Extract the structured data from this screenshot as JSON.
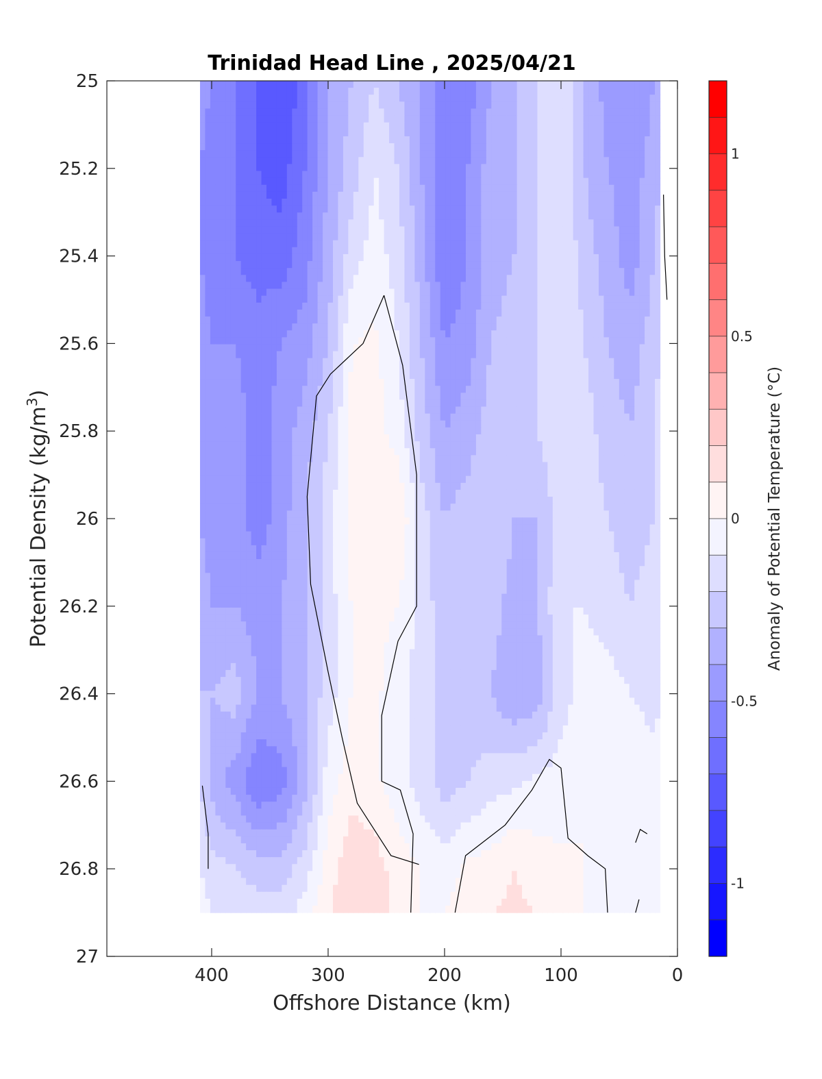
{
  "chart_data": {
    "type": "heatmap",
    "title": "Trinidad Head Line , 2025/04/21",
    "xlabel": "Offshore Distance (km)",
    "ylabel_main": "Potential Density (kg/m",
    "ylabel_sup": "3",
    "ylabel_close": ")",
    "colorbar_label": "Anomaly of Potential Temperature (°C)",
    "xlim": [
      490,
      0
    ],
    "x_reversed": true,
    "ylim": [
      25,
      27
    ],
    "y_reversed": true,
    "x_ticks": [
      {
        "value": 400,
        "label": "400"
      },
      {
        "value": 300,
        "label": "300"
      },
      {
        "value": 200,
        "label": "200"
      },
      {
        "value": 100,
        "label": "100"
      },
      {
        "value": 0,
        "label": "0"
      }
    ],
    "y_ticks": [
      {
        "value": 25,
        "label": "25"
      },
      {
        "value": 25.2,
        "label": "25.2"
      },
      {
        "value": 25.4,
        "label": "25.4"
      },
      {
        "value": 25.6,
        "label": "25.6"
      },
      {
        "value": 25.8,
        "label": "25.8"
      },
      {
        "value": 26,
        "label": "26"
      },
      {
        "value": 26.2,
        "label": "26.2"
      },
      {
        "value": 26.4,
        "label": "26.4"
      },
      {
        "value": 26.6,
        "label": "26.6"
      },
      {
        "value": 26.8,
        "label": "26.8"
      },
      {
        "value": 27,
        "label": "27"
      }
    ],
    "colorbar": {
      "clim": [
        -1.2,
        1.2
      ],
      "step": 0.1,
      "ticks": [
        {
          "value": 1,
          "label": "1"
        },
        {
          "value": 0.5,
          "label": "0.5"
        },
        {
          "value": 0,
          "label": "0"
        },
        {
          "value": -0.5,
          "label": "-0.5"
        },
        {
          "value": -1,
          "label": "-1"
        }
      ]
    },
    "data_extent": {
      "x": [
        410,
        15
      ],
      "y": [
        25,
        26.9
      ]
    },
    "grid": {
      "x": [
        410,
        400,
        380,
        360,
        340,
        320,
        300,
        280,
        260,
        240,
        220,
        200,
        180,
        160,
        140,
        120,
        100,
        80,
        60,
        40,
        20,
        15
      ],
      "y": [
        25.0,
        25.2,
        25.4,
        25.6,
        25.8,
        26.0,
        26.2,
        26.4,
        26.6,
        26.8,
        26.9
      ],
      "values": [
        [
          -0.45,
          -0.5,
          -0.6,
          -0.7,
          -0.8,
          -0.65,
          -0.4,
          -0.3,
          -0.2,
          -0.3,
          -0.4,
          -0.6,
          -0.55,
          -0.4,
          -0.3,
          -0.2,
          -0.1,
          -0.3,
          -0.45,
          -0.5,
          -0.4,
          -0.35
        ],
        [
          -0.5,
          -0.55,
          -0.6,
          -0.7,
          -0.75,
          -0.6,
          -0.4,
          -0.25,
          -0.1,
          -0.2,
          -0.4,
          -0.6,
          -0.5,
          -0.35,
          -0.3,
          -0.2,
          -0.1,
          -0.3,
          -0.4,
          -0.45,
          -0.35,
          -0.3
        ],
        [
          -0.5,
          -0.55,
          -0.6,
          -0.65,
          -0.65,
          -0.55,
          -0.35,
          -0.15,
          -0.05,
          -0.15,
          -0.35,
          -0.6,
          -0.5,
          -0.35,
          -0.3,
          -0.2,
          -0.1,
          -0.25,
          -0.35,
          -0.45,
          -0.3,
          -0.25
        ],
        [
          -0.45,
          -0.5,
          -0.5,
          -0.55,
          -0.5,
          -0.45,
          -0.3,
          0.0,
          0.02,
          -0.1,
          -0.3,
          -0.5,
          -0.45,
          -0.3,
          -0.25,
          -0.2,
          -0.1,
          -0.2,
          -0.3,
          -0.35,
          -0.25,
          -0.2
        ],
        [
          -0.4,
          -0.45,
          -0.45,
          -0.55,
          -0.45,
          -0.35,
          -0.2,
          0.02,
          0.05,
          -0.05,
          -0.25,
          -0.4,
          -0.35,
          -0.25,
          -0.3,
          -0.2,
          -0.1,
          -0.15,
          -0.25,
          -0.3,
          -0.2,
          -0.15
        ],
        [
          -0.4,
          -0.45,
          -0.45,
          -0.55,
          -0.45,
          -0.3,
          -0.15,
          0.05,
          0.1,
          0.1,
          -0.15,
          -0.3,
          -0.25,
          -0.2,
          -0.3,
          -0.3,
          -0.15,
          -0.15,
          -0.2,
          -0.25,
          -0.2,
          -0.15
        ],
        [
          -0.35,
          -0.4,
          -0.4,
          -0.45,
          -0.4,
          -0.3,
          -0.15,
          0.0,
          0.02,
          0.0,
          -0.15,
          -0.25,
          -0.2,
          -0.25,
          -0.35,
          -0.3,
          -0.1,
          -0.1,
          -0.15,
          -0.2,
          -0.15,
          -0.12
        ],
        [
          -0.3,
          -0.3,
          -0.25,
          -0.4,
          -0.4,
          -0.3,
          -0.15,
          0.0,
          0.02,
          -0.05,
          -0.15,
          -0.25,
          -0.25,
          -0.3,
          -0.4,
          -0.35,
          -0.15,
          -0.05,
          -0.05,
          -0.1,
          -0.15,
          -0.12
        ],
        [
          -0.2,
          -0.35,
          -0.45,
          -0.6,
          -0.55,
          -0.35,
          -0.05,
          0.05,
          0.02,
          -0.05,
          -0.15,
          -0.25,
          -0.2,
          -0.15,
          -0.12,
          -0.08,
          -0.05,
          0.0,
          0.0,
          0.0,
          -0.05,
          0.0
        ],
        [
          -0.1,
          -0.15,
          -0.2,
          -0.25,
          -0.25,
          -0.15,
          0.05,
          0.18,
          0.15,
          0.05,
          0.0,
          -0.05,
          0.02,
          0.05,
          0.1,
          0.05,
          0.02,
          0.0,
          0.0,
          0.0,
          0.0,
          0.0
        ],
        [
          -0.05,
          -0.1,
          -0.15,
          -0.15,
          -0.15,
          -0.05,
          0.08,
          0.18,
          0.15,
          0.08,
          0.0,
          0.0,
          0.05,
          0.1,
          0.12,
          0.1,
          0.08,
          0.0,
          0.0,
          0.0,
          0.0,
          0.0
        ]
      ]
    },
    "zero_contours": [
      {
        "points": [
          [
            252,
            25.49
          ],
          [
            270,
            25.6
          ],
          [
            298,
            25.67
          ],
          [
            310,
            25.72
          ],
          [
            318,
            25.95
          ],
          [
            315,
            26.15
          ],
          [
            300,
            26.35
          ],
          [
            288,
            26.5
          ],
          [
            275,
            26.65
          ],
          [
            246,
            26.77
          ],
          [
            222,
            26.79
          ]
        ]
      },
      {
        "points": [
          [
            252,
            25.49
          ],
          [
            236,
            25.65
          ],
          [
            224,
            25.9
          ],
          [
            224,
            26.2
          ],
          [
            240,
            26.28
          ],
          [
            254,
            26.45
          ],
          [
            254,
            26.6
          ],
          [
            238,
            26.62
          ],
          [
            227,
            26.72
          ],
          [
            229,
            26.9
          ]
        ]
      },
      {
        "points": [
          [
            191,
            26.9
          ],
          [
            182,
            26.77
          ],
          [
            148,
            26.7
          ],
          [
            125,
            26.62
          ],
          [
            110,
            26.55
          ],
          [
            100,
            26.57
          ],
          [
            94,
            26.73
          ],
          [
            77,
            26.77
          ],
          [
            62,
            26.8
          ],
          [
            60,
            26.9
          ]
        ]
      },
      {
        "points": [
          [
            408,
            26.61
          ],
          [
            403,
            26.72
          ],
          [
            403,
            26.8
          ]
        ]
      },
      {
        "points": [
          [
            12,
            25.26
          ],
          [
            11,
            25.4
          ],
          [
            9,
            25.5
          ]
        ]
      },
      {
        "points": [
          [
            36,
            26.74
          ],
          [
            32,
            26.71
          ],
          [
            26,
            26.72
          ]
        ]
      },
      {
        "points": [
          [
            36,
            26.9
          ],
          [
            33,
            26.87
          ]
        ]
      }
    ]
  }
}
